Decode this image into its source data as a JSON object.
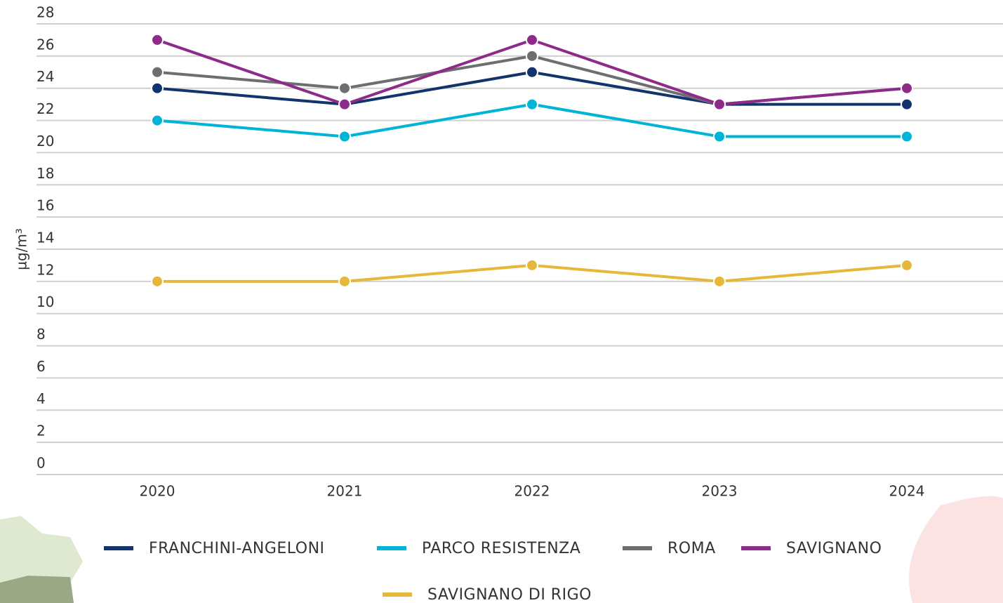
{
  "chart_data": {
    "type": "line",
    "y_label": "µg/m³",
    "categories": [
      "2020",
      "2021",
      "2022",
      "2023",
      "2024"
    ],
    "series": [
      {
        "name": "FRANCHINI-ANGELONI",
        "color": "#12336b",
        "values": [
          24,
          23,
          25,
          23,
          23
        ]
      },
      {
        "name": "PARCO RESISTENZA",
        "color": "#00b4d8",
        "values": [
          22,
          21,
          23,
          21,
          21
        ]
      },
      {
        "name": "ROMA",
        "color": "#6d6e71",
        "values": [
          25,
          24,
          26,
          23,
          24
        ]
      },
      {
        "name": "SAVIGNANO",
        "color": "#8e2a8a",
        "values": [
          27,
          23,
          27,
          23,
          24
        ]
      },
      {
        "name": "SAVIGNANO DI RIGO",
        "color": "#e6b83a",
        "values": [
          12,
          12,
          13,
          12,
          13
        ]
      }
    ],
    "ylim": [
      0,
      28
    ],
    "yticks": [
      0,
      2,
      4,
      6,
      8,
      10,
      12,
      14,
      16,
      18,
      20,
      22,
      24,
      26,
      28
    ],
    "grid": true,
    "legend": "bottom"
  }
}
